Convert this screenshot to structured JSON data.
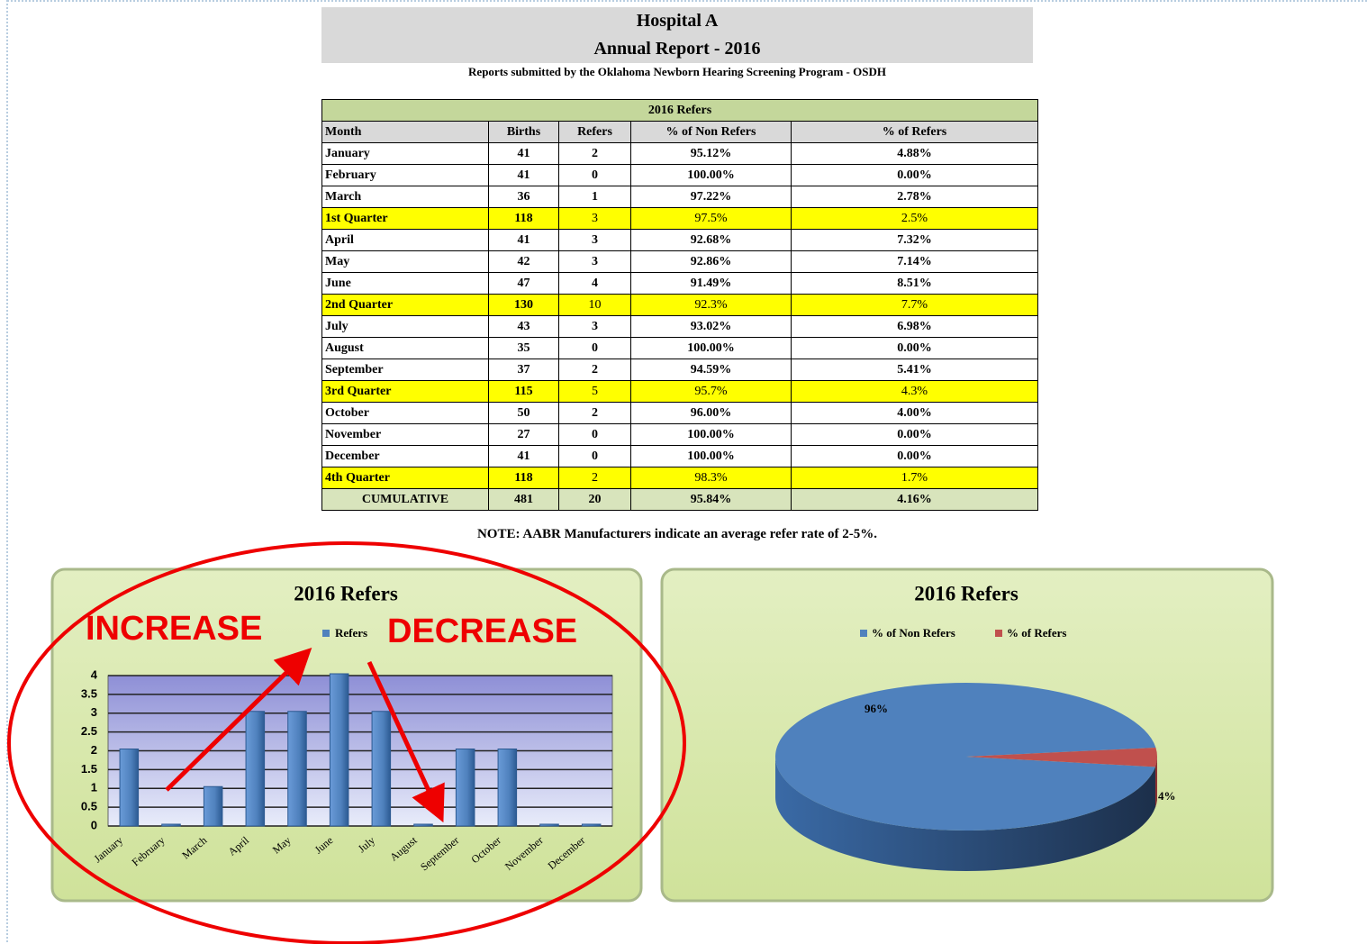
{
  "header": {
    "title": "Hospital A",
    "subtitle": "Annual Report - 2016",
    "source": "Reports submitted by the Oklahoma Newborn Hearing Screening Program - OSDH"
  },
  "table": {
    "title": "2016 Refers",
    "columns": [
      "Month",
      "Births",
      "Refers",
      "% of Non Refers",
      "% of Refers"
    ],
    "rows": [
      [
        "January",
        "41",
        "2",
        "95.12%",
        "4.88%"
      ],
      [
        "February",
        "41",
        "0",
        "100.00%",
        "0.00%"
      ],
      [
        "March",
        "36",
        "1",
        "97.22%",
        "2.78%"
      ],
      [
        "1st Quarter",
        "118",
        "3",
        "97.5%",
        "2.5%"
      ],
      [
        "April",
        "41",
        "3",
        "92.68%",
        "7.32%"
      ],
      [
        "May",
        "42",
        "3",
        "92.86%",
        "7.14%"
      ],
      [
        "June",
        "47",
        "4",
        "91.49%",
        "8.51%"
      ],
      [
        "2nd Quarter",
        "130",
        "10",
        "92.3%",
        "7.7%"
      ],
      [
        "July",
        "43",
        "3",
        "93.02%",
        "6.98%"
      ],
      [
        "August",
        "35",
        "0",
        "100.00%",
        "0.00%"
      ],
      [
        "September",
        "37",
        "2",
        "94.59%",
        "5.41%"
      ],
      [
        "3rd Quarter",
        "115",
        "5",
        "95.7%",
        "4.3%"
      ],
      [
        "October",
        "50",
        "2",
        "96.00%",
        "4.00%"
      ],
      [
        "November",
        "27",
        "0",
        "100.00%",
        "0.00%"
      ],
      [
        "December",
        "41",
        "0",
        "100.00%",
        "0.00%"
      ],
      [
        "4th Quarter",
        "118",
        "2",
        "98.3%",
        "1.7%"
      ],
      [
        "CUMULATIVE",
        "481",
        "20",
        "95.84%",
        "4.16%"
      ]
    ]
  },
  "note": "NOTE: AABR Manufacturers indicate an average refer rate of 2-5%.",
  "chart_data": [
    {
      "type": "bar",
      "title": "2016 Refers",
      "categories": [
        "January",
        "February",
        "March",
        "April",
        "May",
        "June",
        "July",
        "August",
        "September",
        "October",
        "November",
        "December"
      ],
      "series": [
        {
          "name": "Refers",
          "color": "#4f81bd",
          "values": [
            2,
            0,
            1,
            3,
            3,
            4,
            3,
            0,
            2,
            2,
            0,
            0
          ]
        }
      ],
      "ylim": [
        0,
        4
      ],
      "yticks": [
        0,
        0.5,
        1,
        1.5,
        2,
        2.5,
        3,
        3.5,
        4
      ],
      "grid": true,
      "annotations": [
        "INCREASE",
        "DECREASE"
      ]
    },
    {
      "type": "pie",
      "title": "2016 Refers",
      "categories": [
        "% of Non Refers",
        "% of Refers"
      ],
      "values": [
        95.84,
        4.16
      ],
      "value_labels": [
        "96%",
        "4%"
      ],
      "colors": [
        "#4f81bd",
        "#c0504d"
      ]
    }
  ]
}
